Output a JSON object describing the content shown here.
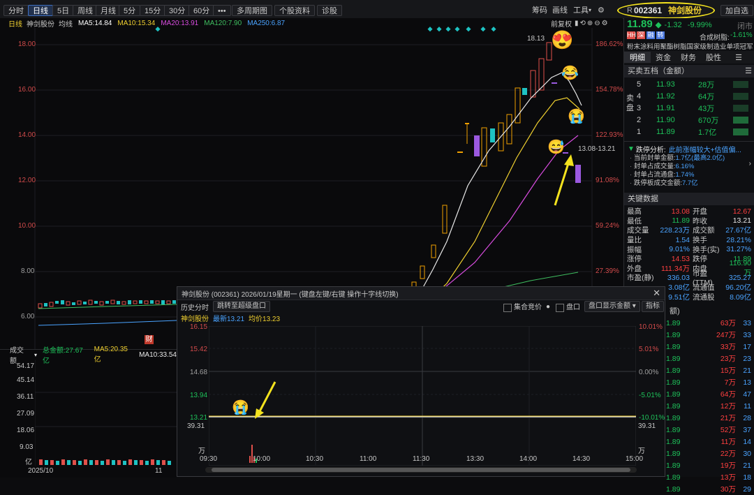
{
  "toolbar": {
    "left_tabs": [
      "分时",
      "日线",
      "5日",
      "周线",
      "月线",
      "5分",
      "15分",
      "30分",
      "60分",
      "•••",
      "多周期图",
      "个股资料",
      "诊股"
    ],
    "active_tab": "日线",
    "right_items": [
      "筹码",
      "画线",
      "工具",
      "加自选"
    ],
    "stock_code_prefix": "R",
    "stock_code": "002361",
    "stock_name": "神剑股份"
  },
  "chart": {
    "title": "日线",
    "stock": "神剑股份",
    "avg_label": "均线",
    "ma": [
      {
        "label": "MA5:14.84",
        "color": "#ffffff"
      },
      {
        "label": "MA10:15.34",
        "color": "#f0d030"
      },
      {
        "label": "MA20:13.91",
        "color": "#d94ce0"
      },
      {
        "label": "MA120:7.90",
        "color": "#3fbf60"
      },
      {
        "label": "MA250:6.87",
        "color": "#4aa3ff"
      }
    ],
    "adj_label": "前复权",
    "y_ticks": [
      "18.00",
      "16.00",
      "14.00",
      "12.00",
      "10.00",
      "8.00",
      "6.00"
    ],
    "pct_ticks": [
      "186.62%",
      "154.78%",
      "122.93%",
      "91.08%",
      "59.24%",
      "27.39%"
    ],
    "high_label": "18.13",
    "range_label": "13.08-13.21",
    "cai_badge": "财"
  },
  "volume": {
    "title": "成交额",
    "total": "总金额:27.67亿",
    "ma5": "MA5:20.35亿",
    "ma10": "MA10:33.54",
    "ticks": [
      "54.17",
      "45.14",
      "36.11",
      "27.09",
      "18.06",
      "9.03",
      "亿"
    ],
    "date_labels": [
      "2025/10",
      "11"
    ]
  },
  "panel": {
    "price": "11.89",
    "change": "-1.32",
    "change_pct": "-9.99%",
    "status": "闭市",
    "tags": [
      "HH",
      "深",
      "融",
      "转"
    ],
    "tag_colors": [
      "#e0504a",
      "#e0504a",
      "#4a78e0",
      "#4a78e0"
    ],
    "synth_label": "合成树脂:",
    "synth_value": "-1.61%",
    "concept": "粉末涂料用聚酯树脂国家级制造业单项冠军",
    "tabs": [
      "明细",
      "资金",
      "财务",
      "股性"
    ],
    "order_head": "买卖五档（金额）",
    "side_label": "卖盘",
    "asks": [
      {
        "lv": "5",
        "price": "11.93",
        "amt": "28万"
      },
      {
        "lv": "4",
        "price": "11.92",
        "amt": "64万"
      },
      {
        "lv": "3",
        "price": "11.91",
        "amt": "43万"
      },
      {
        "lv": "2",
        "price": "11.90",
        "amt": "670万"
      },
      {
        "lv": "1",
        "price": "11.89",
        "amt": "1.7亿"
      }
    ],
    "limit_title": "跌停分析:",
    "limit_tag": "此前涨幅较大+估值偏...",
    "limit_rows": [
      {
        "k": "当前封单金额:",
        "v": "1.7亿",
        "extra": "(最高2.0亿)"
      },
      {
        "k": "封单占成交量:",
        "v": "6.16%",
        "extra": ""
      },
      {
        "k": "封单占流通盘:",
        "v": "1.74%",
        "extra": ""
      },
      {
        "k": "跌停板成交金额:",
        "v": "7.7亿",
        "extra": ""
      }
    ],
    "key_head": "关键数据",
    "key_rows": [
      {
        "a": "最高",
        "av": "13.08",
        "ac": "#ff4040",
        "b": "开盘",
        "bv": "12.67",
        "bc": "#ff4040"
      },
      {
        "a": "最低",
        "av": "11.89",
        "ac": "#1ec25a",
        "b": "昨收",
        "bv": "13.21",
        "bc": "#e8e8e8"
      },
      {
        "a": "成交量",
        "av": "228.23万",
        "ac": "#4aa3ff",
        "b": "成交额",
        "bv": "27.67亿",
        "bc": "#4aa3ff"
      },
      {
        "a": "量比",
        "av": "1.54",
        "ac": "#4aa3ff",
        "b": "换手",
        "bv": "28.21%",
        "bc": "#4aa3ff"
      },
      {
        "a": "振幅",
        "av": "9.01%",
        "ac": "#4aa3ff",
        "b": "换手(实)",
        "bv": "31.27%",
        "bc": "#4aa3ff"
      },
      {
        "a": "涨停",
        "av": "14.53",
        "ac": "#ff4040",
        "b": "跌停",
        "bv": "11.89",
        "bc": "#1ec25a"
      },
      {
        "a": "外盘",
        "av": "111.34万",
        "ac": "#ff4040",
        "b": "内盘",
        "bv": "116.90万",
        "bc": "#1ec25a"
      },
      {
        "a": "市盈(静)",
        "av": "336.03",
        "ac": "#4aa3ff",
        "b": "市盈(TTM)",
        "bv": "325.27",
        "bc": "#4aa3ff"
      },
      {
        "a": "",
        "av": "3.08亿",
        "ac": "#4aa3ff",
        "b": "流通值",
        "bv": "96.20亿",
        "bc": "#4aa3ff"
      },
      {
        "a": "",
        "av": "9.51亿",
        "ac": "#4aa3ff",
        "b": "流通股",
        "bv": "8.09亿",
        "bc": "#4aa3ff"
      }
    ],
    "ticks_head": "额)",
    "ticks": [
      {
        "p": "1.89",
        "a": "63万",
        "n": "33"
      },
      {
        "p": "1.89",
        "a": "247万",
        "n": "33"
      },
      {
        "p": "1.89",
        "a": "33万",
        "n": "17"
      },
      {
        "p": "1.89",
        "a": "23万",
        "n": "23"
      },
      {
        "p": "1.89",
        "a": "15万",
        "n": "21"
      },
      {
        "p": "1.89",
        "a": "7万",
        "n": "13"
      },
      {
        "p": "1.89",
        "a": "64万",
        "n": "47"
      },
      {
        "p": "1.89",
        "a": "12万",
        "n": "11"
      },
      {
        "p": "1.89",
        "a": "21万",
        "n": "28"
      },
      {
        "p": "1.89",
        "a": "52万",
        "n": "37"
      },
      {
        "p": "1.89",
        "a": "11万",
        "n": "14"
      },
      {
        "p": "1.89",
        "a": "22万",
        "n": "30"
      },
      {
        "p": "1.89",
        "a": "19万",
        "n": "21"
      },
      {
        "p": "1.89",
        "a": "13万",
        "n": "18"
      },
      {
        "p": "1.89",
        "a": "30万",
        "n": "29"
      }
    ]
  },
  "popup": {
    "title": "神剑股份  (002361)   2026/01/19星期一   (键盘左键/右键 操作十字线切换)",
    "hist_label": "历史分时",
    "jump_btn": "跳转至超级盘口",
    "auction": "集合竞价",
    "pankou": "盘口",
    "pankou_sel": "盘口显示金额",
    "indicator": "指标",
    "stock": "神剑股份",
    "latest": "最新13.21",
    "avg": "均价13.23",
    "y_ticks": [
      "16.15",
      "15.42",
      "14.68",
      "13.94",
      "13.21"
    ],
    "pct_ticks": [
      "10.01%",
      "5.01%",
      "0.00%",
      "-5.01%",
      "-10.01%"
    ],
    "vol_top": "39.31",
    "vol_unit": "万",
    "x_ticks": [
      "09:30",
      "10:00",
      "10:30",
      "11:00",
      "11:30",
      "13:30",
      "14:00",
      "14:30",
      "15:00"
    ]
  }
}
